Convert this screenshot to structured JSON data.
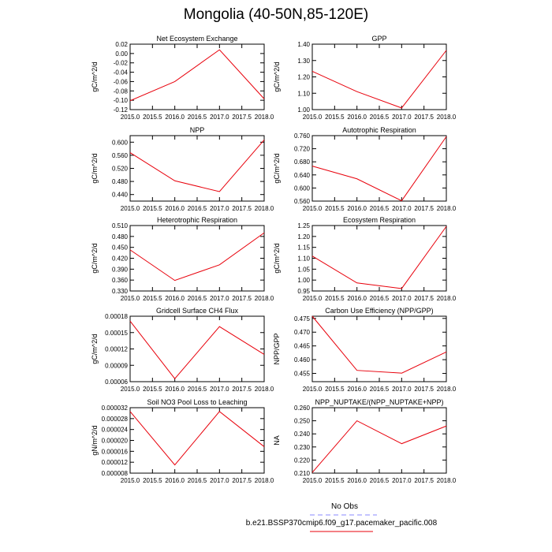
{
  "figure": {
    "title": "Mongolia (40-50N,85-120E)",
    "x_tick_labels": [
      "2015.0",
      "2015.5",
      "2016.0",
      "2016.5",
      "2017.0",
      "2017.5",
      "2018.0"
    ],
    "line_color": "#e8000b",
    "obs_color": "#8888ff"
  },
  "legend": {
    "obs_label": "No Obs",
    "model_label": "b.e21.BSSP370cmip6.f09_g17.pacemaker_pacific.008"
  },
  "chart_data": [
    {
      "type": "line",
      "title": "Net Ecosystem Exchange",
      "ylabel": "gC/m^2/d",
      "x": [
        2015.0,
        2016.0,
        2017.0,
        2018.0
      ],
      "series": [
        {
          "values": [
            -0.101,
            -0.06,
            0.008,
            -0.097
          ]
        }
      ],
      "xlim": [
        2015.0,
        2018.0
      ],
      "ylim": [
        -0.12,
        0.02
      ],
      "y_ticks": [
        "0.02",
        "0.00",
        "-0.02",
        "-0.04",
        "-0.06",
        "-0.08",
        "-0.10",
        "-0.12"
      ]
    },
    {
      "type": "line",
      "title": "GPP",
      "ylabel": "gC/m^2/d",
      "x": [
        2015.0,
        2016.0,
        2017.0,
        2018.0
      ],
      "series": [
        {
          "values": [
            1.234,
            1.11,
            1.01,
            1.362
          ]
        }
      ],
      "xlim": [
        2015.0,
        2018.0
      ],
      "ylim": [
        1.0,
        1.4
      ],
      "y_ticks": [
        "1.40",
        "1.30",
        "1.20",
        "1.10",
        "1.00"
      ]
    },
    {
      "type": "line",
      "title": "NPP",
      "ylabel": "gC/m^2/d",
      "x": [
        2015.0,
        2016.0,
        2017.0,
        2018.0
      ],
      "series": [
        {
          "values": [
            0.568,
            0.482,
            0.449,
            0.607
          ]
        }
      ],
      "xlim": [
        2015.0,
        2018.0
      ],
      "ylim": [
        0.42,
        0.62
      ],
      "y_ticks": [
        "0.600",
        "0.560",
        "0.520",
        "0.480",
        "0.440"
      ]
    },
    {
      "type": "line",
      "title": "Autotrophic Respiration",
      "ylabel": "gC/m^2/d",
      "x": [
        2015.0,
        2016.0,
        2017.0,
        2018.0
      ],
      "series": [
        {
          "values": [
            0.667,
            0.628,
            0.561,
            0.757
          ]
        }
      ],
      "xlim": [
        2015.0,
        2018.0
      ],
      "ylim": [
        0.56,
        0.76
      ],
      "y_ticks": [
        "0.760",
        "0.720",
        "0.680",
        "0.640",
        "0.600",
        "0.560"
      ]
    },
    {
      "type": "line",
      "title": "Heterotrophic Respiration",
      "ylabel": "gC/m^2/d",
      "x": [
        2015.0,
        2016.0,
        2017.0,
        2018.0
      ],
      "series": [
        {
          "values": [
            0.443,
            0.359,
            0.402,
            0.49
          ]
        }
      ],
      "xlim": [
        2015.0,
        2018.0
      ],
      "ylim": [
        0.33,
        0.51
      ],
      "y_ticks": [
        "0.510",
        "0.480",
        "0.450",
        "0.420",
        "0.390",
        "0.360",
        "0.330"
      ]
    },
    {
      "type": "line",
      "title": "Ecosystem Respiration",
      "ylabel": "gC/m^2/d",
      "x": [
        2015.0,
        2016.0,
        2017.0,
        2018.0
      ],
      "series": [
        {
          "values": [
            1.11,
            0.987,
            0.961,
            1.246
          ]
        }
      ],
      "xlim": [
        2015.0,
        2018.0
      ],
      "ylim": [
        0.95,
        1.25
      ],
      "y_ticks": [
        "1.25",
        "1.20",
        "1.15",
        "1.10",
        "1.05",
        "1.00",
        "0.95"
      ]
    },
    {
      "type": "line",
      "title": "Gridcell Surface CH4 Flux",
      "ylabel": "gC/m^2/d",
      "x": [
        2015.0,
        2016.0,
        2017.0,
        2018.0
      ],
      "series": [
        {
          "values": [
            0.000171,
            6.55e-05,
            0.000161,
            0.00011
          ]
        }
      ],
      "xlim": [
        2015.0,
        2018.0
      ],
      "ylim": [
        6e-05,
        0.00018
      ],
      "y_ticks": [
        "0.00018",
        "0.00015",
        "0.00012",
        "0.00009",
        "0.00006"
      ]
    },
    {
      "type": "line",
      "title": "Carbon Use Efficiency (NPP/GPP)",
      "ylabel": "NPP/GPP",
      "x": [
        2015.0,
        2016.0,
        2017.0,
        2018.0
      ],
      "series": [
        {
          "values": [
            0.4758,
            0.4561,
            0.4551,
            0.4628
          ]
        }
      ],
      "xlim": [
        2015.0,
        2018.0
      ],
      "ylim": [
        0.452,
        0.4758
      ],
      "y_ticks": [
        "0.475",
        "0.470",
        "0.465",
        "0.460",
        "0.455"
      ]
    },
    {
      "type": "line",
      "title": "Soil NO3 Pool Loss to Leaching",
      "ylabel": "gN/m^2/d",
      "x": [
        2015.0,
        2016.0,
        2017.0,
        2018.0
      ],
      "series": [
        {
          "values": [
            3.06e-05,
            1.1e-05,
            3.06e-05,
            1.77e-05
          ]
        }
      ],
      "xlim": [
        2015.0,
        2018.0
      ],
      "ylim": [
        8e-06,
        3.2e-05
      ],
      "y_ticks": [
        "0.000032",
        "0.000028",
        "0.000024",
        "0.000020",
        "0.000016",
        "0.000012",
        "0.000008"
      ]
    },
    {
      "type": "line",
      "title": "NPP_NUPTAKE/(NPP_NUPTAKE+NPP)",
      "ylabel": "NA",
      "x": [
        2015.0,
        2016.0,
        2017.0,
        2018.0
      ],
      "series": [
        {
          "values": [
            0.2105,
            0.25,
            0.2325,
            0.246
          ]
        }
      ],
      "xlim": [
        2015.0,
        2018.0
      ],
      "ylim": [
        0.21,
        0.26
      ],
      "y_ticks": [
        "0.260",
        "0.250",
        "0.240",
        "0.230",
        "0.220",
        "0.210"
      ]
    }
  ]
}
